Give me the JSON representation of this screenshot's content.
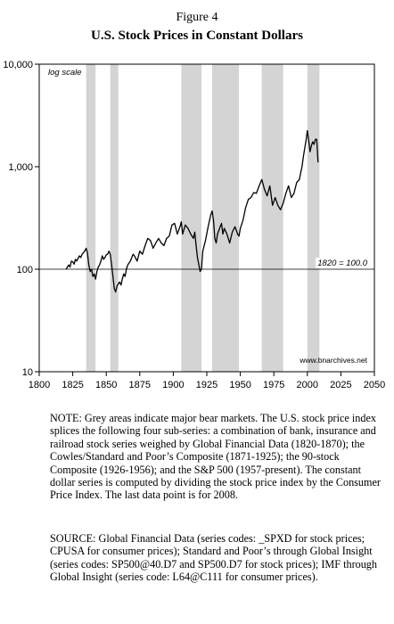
{
  "figure": {
    "label": "Figure 4",
    "title": "U.S. Stock Prices in Constant Dollars"
  },
  "chart_data": {
    "type": "line",
    "title": "U.S. Stock Prices in Constant Dollars",
    "xlabel": "",
    "ylabel": "",
    "xlim": [
      1800,
      2050
    ],
    "ylim": [
      10,
      10000
    ],
    "y_scale": "log",
    "x_ticks": [
      "1800",
      "1825",
      "1850",
      "1875",
      "1900",
      "1925",
      "1950",
      "1975",
      "2000",
      "2025",
      "2050"
    ],
    "y_ticks": [
      "10",
      "100",
      "1,000",
      "10,000"
    ],
    "grid": false,
    "legend": "none",
    "annotations": {
      "scale_note": "log scale",
      "baseline_label": "1820 = 100.0",
      "source_url": "www.bnarchives.net"
    },
    "baseline": 100,
    "bear_markets": [
      {
        "start": 1835,
        "end": 1842
      },
      {
        "start": 1853,
        "end": 1859
      },
      {
        "start": 1906,
        "end": 1921
      },
      {
        "start": 1929,
        "end": 1949
      },
      {
        "start": 1966,
        "end": 1982
      },
      {
        "start": 2000,
        "end": 2009
      }
    ],
    "series": [
      {
        "color": "#000000",
        "x": [
          1820,
          1822,
          1823,
          1824,
          1825,
          1826,
          1827,
          1828,
          1829,
          1830,
          1831,
          1832,
          1833,
          1834,
          1835,
          1836,
          1837,
          1838,
          1839,
          1840,
          1841,
          1842,
          1843,
          1844,
          1845,
          1846,
          1847,
          1848,
          1849,
          1850,
          1851,
          1852,
          1853,
          1854,
          1855,
          1856,
          1857,
          1858,
          1859,
          1860,
          1861,
          1862,
          1863,
          1864,
          1865,
          1866,
          1867,
          1868,
          1869,
          1870,
          1871,
          1873,
          1875,
          1877,
          1879,
          1881,
          1883,
          1885,
          1887,
          1889,
          1891,
          1893,
          1895,
          1897,
          1899,
          1901,
          1903,
          1905,
          1906,
          1907,
          1909,
          1911,
          1913,
          1915,
          1916,
          1917,
          1918,
          1920,
          1921,
          1922,
          1924,
          1926,
          1928,
          1929,
          1930,
          1931,
          1932,
          1933,
          1935,
          1936,
          1937,
          1938,
          1940,
          1942,
          1944,
          1946,
          1948,
          1949,
          1950,
          1952,
          1954,
          1956,
          1958,
          1960,
          1962,
          1964,
          1966,
          1968,
          1970,
          1972,
          1974,
          1976,
          1978,
          1980,
          1982,
          1984,
          1986,
          1988,
          1990,
          1992,
          1994,
          1996,
          1997,
          1998,
          1999,
          2000,
          2001,
          2002,
          2003,
          2004,
          2005,
          2006,
          2007,
          2008
        ],
        "y": [
          100,
          110,
          105,
          120,
          118,
          112,
          125,
          120,
          128,
          135,
          130,
          140,
          145,
          150,
          160,
          145,
          110,
          95,
          100,
          85,
          90,
          80,
          95,
          105,
          110,
          120,
          135,
          125,
          130,
          138,
          140,
          150,
          140,
          110,
          85,
          65,
          60,
          68,
          72,
          75,
          70,
          80,
          90,
          85,
          100,
          110,
          115,
          120,
          130,
          140,
          135,
          120,
          150,
          140,
          170,
          200,
          190,
          160,
          180,
          200,
          180,
          170,
          200,
          210,
          270,
          280,
          220,
          260,
          290,
          220,
          270,
          250,
          220,
          200,
          230,
          170,
          130,
          95,
          100,
          150,
          190,
          260,
          340,
          370,
          300,
          200,
          180,
          220,
          260,
          280,
          220,
          250,
          220,
          180,
          230,
          260,
          220,
          210,
          250,
          300,
          400,
          480,
          500,
          560,
          550,
          650,
          750,
          600,
          520,
          650,
          420,
          500,
          420,
          380,
          440,
          550,
          650,
          500,
          550,
          700,
          750,
          1000,
          1250,
          1500,
          1800,
          2250,
          1800,
          1400,
          1600,
          1750,
          1650,
          1850,
          1850,
          1100
        ]
      }
    ]
  },
  "notes": {
    "note": "NOTE: Grey areas indicate major bear markets. The U.S. stock price index splices the following four sub-series: a combination of bank, insurance and railroad stock series weighed by Global Financial Data (1820-1870); the Cowles/Standard and Poor’s Composite (1871-1925); the 90-stock Composite (1926-1956); and the S&P 500 (1957-present). The constant dollar series is computed by dividing the stock price index by the Consumer Price Index. The last data point is for 2008.",
    "source": "SOURCE: Global Financial Data (series codes: _SPXD for stock prices; CPUSA for consumer prices); Standard and Poor’s through Global Insight (series codes: SP500@40.D7 and SP500.D7 for stock prices); IMF through Global Insight (series code: L64@C111 for consumer prices)."
  }
}
